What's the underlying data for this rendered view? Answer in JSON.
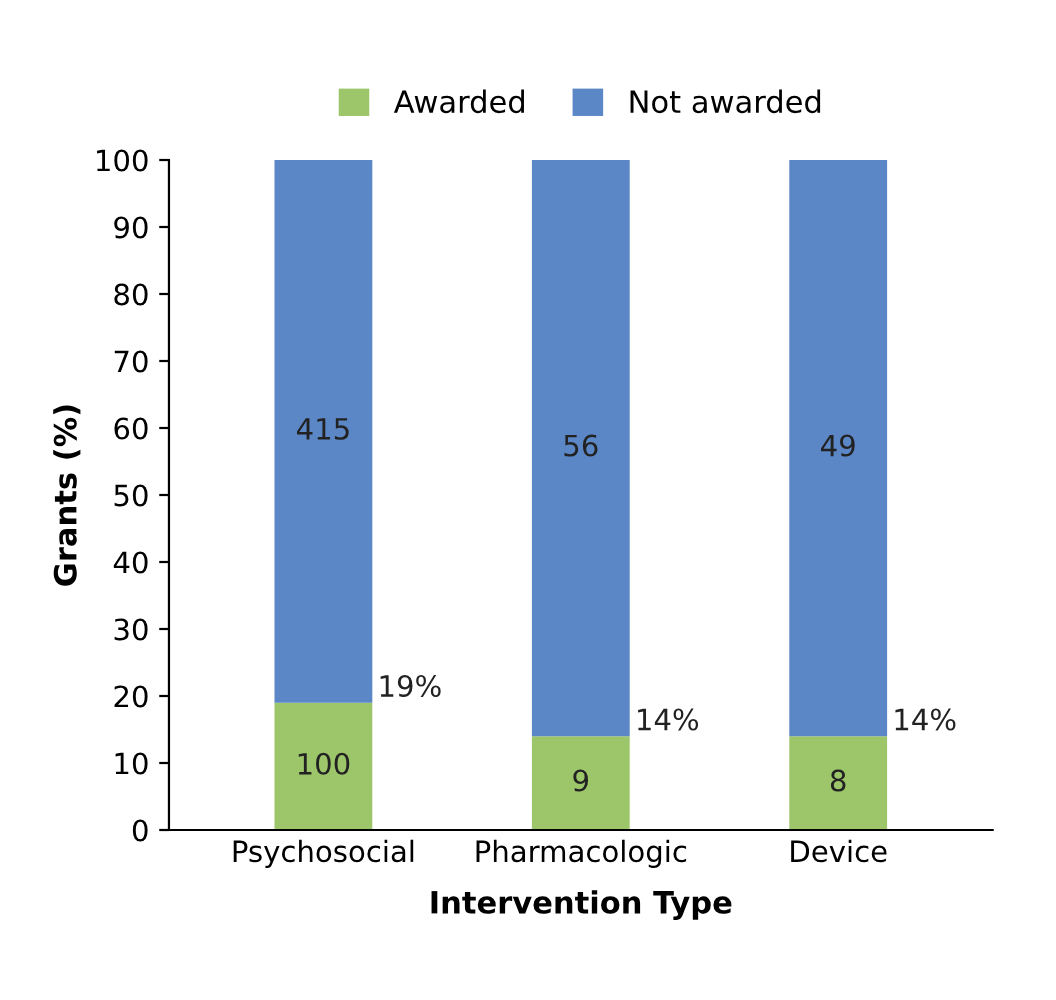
{
  "chart_data": {
    "type": "bar",
    "stacked": true,
    "xlabel": "Intervention Type",
    "ylabel": "Grants (%)",
    "categories": [
      "Psychosocial",
      "Pharmacologic",
      "Device"
    ],
    "series": [
      {
        "name": "Awarded",
        "color": "#9dc66b",
        "values": [
          19,
          14,
          14
        ]
      },
      {
        "name": "Not awarded",
        "color": "#5b87c7",
        "values": [
          81,
          86,
          86
        ]
      }
    ],
    "ylim": [
      0,
      100
    ],
    "yticks": [
      0,
      10,
      20,
      30,
      40,
      50,
      60,
      70,
      80,
      90,
      100
    ],
    "annotations": [
      {
        "text": "19%",
        "x": "Psychosocial",
        "y": 19
      },
      {
        "text": "14%",
        "x": "Pharmacologic",
        "y": 14
      },
      {
        "text": "14%",
        "x": "Device",
        "y": 14
      },
      "100",
      "9",
      "8",
      "415",
      "56",
      "49"
    ],
    "legend": "top",
    "grid": false
  }
}
